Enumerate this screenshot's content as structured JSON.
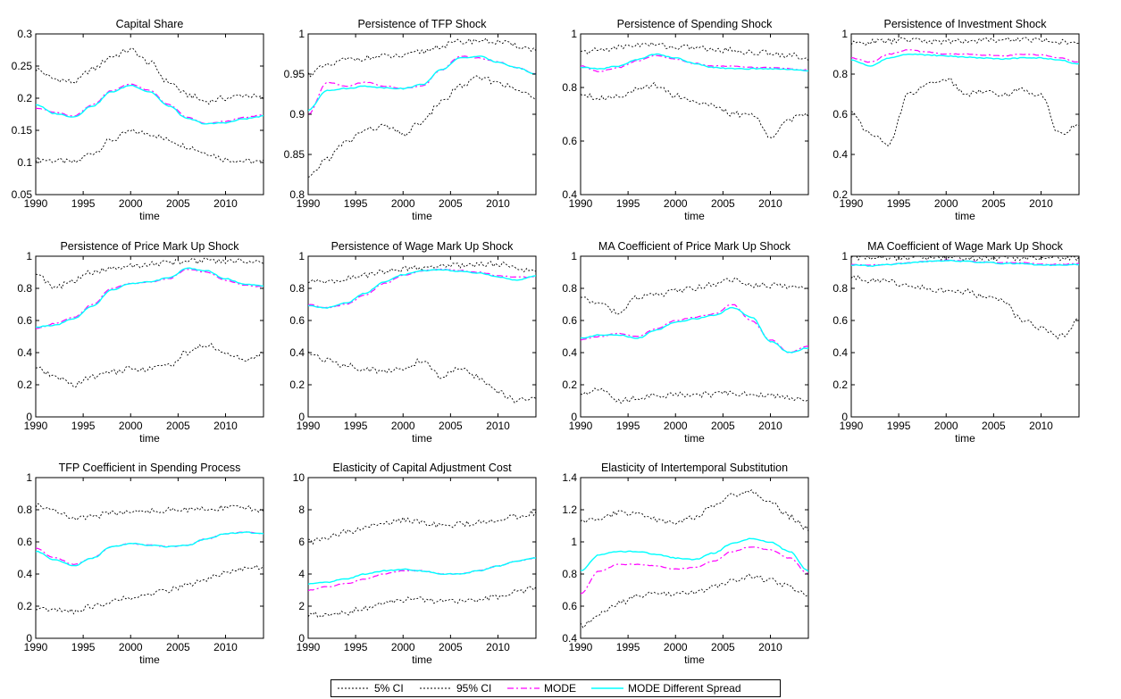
{
  "chart_data": {
    "type": "line",
    "layout": "3x4 grid of line charts",
    "x_range": [
      1990,
      2014
    ],
    "xticks": [
      1990,
      1995,
      2000,
      2005,
      2010
    ],
    "xlabel": "time",
    "legend": {
      "placement": "bottom-center",
      "entries": [
        {
          "name": "5% CI",
          "color": "#000000",
          "style": "dotted"
        },
        {
          "name": "95% CI",
          "color": "#000000",
          "style": "dotted"
        },
        {
          "name": "MODE",
          "color": "#ff00ff",
          "style": "dash-dot"
        },
        {
          "name": "MODE Different Spread",
          "color": "#00ffff",
          "style": "solid"
        }
      ]
    },
    "x_knots": [
      1990,
      1992,
      1994,
      1996,
      1998,
      2000,
      2002,
      2004,
      2006,
      2008,
      2010,
      2012,
      2014
    ],
    "panels": [
      {
        "title": "Capital Share",
        "ylim": [
          0.05,
          0.3
        ],
        "yticks": [
          0.05,
          0.1,
          0.15,
          0.2,
          0.25,
          0.3
        ],
        "ytick_labels": [
          "0.05",
          "0.1",
          "0.15",
          "0.2",
          "0.25",
          "0.3"
        ],
        "series": {
          "ci5": [
            0.105,
            0.103,
            0.1,
            0.115,
            0.135,
            0.148,
            0.145,
            0.135,
            0.125,
            0.115,
            0.105,
            0.102,
            0.1
          ],
          "ci95": [
            0.245,
            0.23,
            0.225,
            0.245,
            0.265,
            0.275,
            0.255,
            0.225,
            0.205,
            0.195,
            0.2,
            0.205,
            0.2
          ],
          "mode": [
            0.185,
            0.178,
            0.172,
            0.19,
            0.212,
            0.222,
            0.212,
            0.19,
            0.17,
            0.16,
            0.164,
            0.17,
            0.174
          ],
          "spread": [
            0.19,
            0.176,
            0.171,
            0.188,
            0.21,
            0.22,
            0.21,
            0.188,
            0.168,
            0.16,
            0.162,
            0.168,
            0.172
          ]
        }
      },
      {
        "title": "Persistence of TFP Shock",
        "ylim": [
          0.8,
          1
        ],
        "yticks": [
          0.8,
          0.85,
          0.9,
          0.95,
          1
        ],
        "ytick_labels": [
          "0.8",
          "0.85",
          "0.9",
          "0.95",
          "1"
        ],
        "series": {
          "ci5": [
            0.82,
            0.845,
            0.865,
            0.88,
            0.885,
            0.875,
            0.89,
            0.915,
            0.935,
            0.945,
            0.94,
            0.93,
            0.92
          ],
          "ci95": [
            0.95,
            0.96,
            0.968,
            0.97,
            0.972,
            0.972,
            0.978,
            0.985,
            0.99,
            0.992,
            0.99,
            0.985,
            0.98
          ],
          "mode": [
            0.9,
            0.94,
            0.935,
            0.94,
            0.935,
            0.932,
            0.935,
            0.955,
            0.972,
            0.97,
            0.965,
            0.958,
            0.95
          ],
          "spread": [
            0.905,
            0.93,
            0.932,
            0.935,
            0.933,
            0.932,
            0.937,
            0.955,
            0.97,
            0.972,
            0.965,
            0.958,
            0.95
          ]
        }
      },
      {
        "title": "Persistence of Spending Shock",
        "ylim": [
          0.4,
          1
        ],
        "yticks": [
          0.4,
          0.6,
          0.8,
          1
        ],
        "ytick_labels": [
          "0.4",
          "0.6",
          "0.8",
          "1"
        ],
        "series": {
          "ci5": [
            0.78,
            0.76,
            0.77,
            0.79,
            0.81,
            0.77,
            0.75,
            0.73,
            0.7,
            0.7,
            0.62,
            0.68,
            0.7
          ],
          "ci95": [
            0.93,
            0.94,
            0.95,
            0.96,
            0.96,
            0.95,
            0.95,
            0.94,
            0.94,
            0.93,
            0.93,
            0.92,
            0.91
          ],
          "mode": [
            0.88,
            0.86,
            0.875,
            0.9,
            0.92,
            0.905,
            0.89,
            0.88,
            0.88,
            0.875,
            0.875,
            0.87,
            0.865
          ],
          "spread": [
            0.875,
            0.87,
            0.88,
            0.905,
            0.925,
            0.91,
            0.89,
            0.875,
            0.87,
            0.87,
            0.87,
            0.868,
            0.862
          ]
        }
      },
      {
        "title": "Persistence of Investment Shock",
        "ylim": [
          0.2,
          1
        ],
        "yticks": [
          0.2,
          0.4,
          0.6,
          0.8,
          1
        ],
        "ytick_labels": [
          "0.2",
          "0.4",
          "0.6",
          "0.8",
          "1"
        ],
        "series": {
          "ci5": [
            0.62,
            0.5,
            0.45,
            0.7,
            0.75,
            0.78,
            0.7,
            0.72,
            0.7,
            0.72,
            0.7,
            0.5,
            0.55
          ],
          "ci95": [
            0.95,
            0.96,
            0.965,
            0.97,
            0.965,
            0.96,
            0.965,
            0.97,
            0.97,
            0.975,
            0.97,
            0.96,
            0.96
          ],
          "mode": [
            0.88,
            0.86,
            0.9,
            0.92,
            0.91,
            0.9,
            0.9,
            0.895,
            0.89,
            0.9,
            0.895,
            0.88,
            0.86
          ],
          "spread": [
            0.87,
            0.84,
            0.88,
            0.9,
            0.895,
            0.89,
            0.885,
            0.88,
            0.875,
            0.88,
            0.88,
            0.87,
            0.85
          ]
        }
      },
      {
        "title": "Persistence of Price Mark Up Shock",
        "ylim": [
          0,
          1
        ],
        "yticks": [
          0,
          0.2,
          0.4,
          0.6,
          0.8,
          1
        ],
        "ytick_labels": [
          "0",
          "0.2",
          "0.4",
          "0.6",
          "0.8",
          "1"
        ],
        "series": {
          "ci5": [
            0.3,
            0.25,
            0.2,
            0.25,
            0.28,
            0.3,
            0.3,
            0.32,
            0.4,
            0.45,
            0.4,
            0.35,
            0.4
          ],
          "ci95": [
            0.9,
            0.8,
            0.85,
            0.9,
            0.92,
            0.94,
            0.95,
            0.96,
            0.97,
            0.97,
            0.97,
            0.97,
            0.97
          ],
          "mode": [
            0.55,
            0.58,
            0.62,
            0.7,
            0.8,
            0.83,
            0.84,
            0.86,
            0.92,
            0.9,
            0.85,
            0.82,
            0.81
          ],
          "spread": [
            0.56,
            0.57,
            0.61,
            0.69,
            0.79,
            0.83,
            0.84,
            0.865,
            0.925,
            0.91,
            0.86,
            0.825,
            0.815
          ]
        }
      },
      {
        "title": "Persistence of Wage Mark Up Shock",
        "ylim": [
          0,
          1
        ],
        "yticks": [
          0,
          0.2,
          0.4,
          0.6,
          0.8,
          1
        ],
        "ytick_labels": [
          "0",
          "0.2",
          "0.4",
          "0.6",
          "0.8",
          "1"
        ],
        "series": {
          "ci5": [
            0.4,
            0.35,
            0.32,
            0.3,
            0.28,
            0.3,
            0.35,
            0.25,
            0.3,
            0.25,
            0.15,
            0.1,
            0.12
          ],
          "ci95": [
            0.84,
            0.84,
            0.86,
            0.88,
            0.9,
            0.92,
            0.93,
            0.94,
            0.94,
            0.95,
            0.95,
            0.93,
            0.9
          ],
          "mode": [
            0.7,
            0.68,
            0.7,
            0.76,
            0.83,
            0.88,
            0.91,
            0.92,
            0.91,
            0.9,
            0.88,
            0.87,
            0.87
          ],
          "spread": [
            0.69,
            0.68,
            0.71,
            0.77,
            0.84,
            0.885,
            0.91,
            0.915,
            0.905,
            0.895,
            0.87,
            0.85,
            0.88
          ]
        }
      },
      {
        "title": "MA Coefficient of Price Mark Up Shock",
        "ylim": [
          0,
          1
        ],
        "yticks": [
          0,
          0.2,
          0.4,
          0.6,
          0.8,
          1
        ],
        "ytick_labels": [
          "0",
          "0.2",
          "0.4",
          "0.6",
          "0.8",
          "1"
        ],
        "series": {
          "ci5": [
            0.15,
            0.18,
            0.1,
            0.12,
            0.13,
            0.14,
            0.14,
            0.14,
            0.15,
            0.14,
            0.13,
            0.12,
            0.11
          ],
          "ci95": [
            0.75,
            0.7,
            0.65,
            0.74,
            0.76,
            0.78,
            0.8,
            0.83,
            0.85,
            0.82,
            0.82,
            0.81,
            0.8
          ],
          "mode": [
            0.48,
            0.5,
            0.52,
            0.5,
            0.55,
            0.6,
            0.62,
            0.64,
            0.7,
            0.6,
            0.48,
            0.4,
            0.44
          ],
          "spread": [
            0.49,
            0.51,
            0.51,
            0.49,
            0.54,
            0.59,
            0.61,
            0.63,
            0.68,
            0.62,
            0.47,
            0.4,
            0.43
          ]
        }
      },
      {
        "title": "MA Coefficient of Wage Mark Up Shock",
        "ylim": [
          0,
          1
        ],
        "yticks": [
          0,
          0.2,
          0.4,
          0.6,
          0.8,
          1
        ],
        "ytick_labels": [
          "0",
          "0.2",
          "0.4",
          "0.6",
          "0.8",
          "1"
        ],
        "series": {
          "ci5": [
            0.87,
            0.85,
            0.84,
            0.82,
            0.8,
            0.78,
            0.78,
            0.75,
            0.72,
            0.6,
            0.55,
            0.5,
            0.6
          ],
          "ci95": [
            0.99,
            0.99,
            0.99,
            0.99,
            0.99,
            0.99,
            0.99,
            0.99,
            0.99,
            0.99,
            0.99,
            0.985,
            0.985
          ],
          "mode": [
            0.95,
            0.945,
            0.95,
            0.96,
            0.97,
            0.975,
            0.97,
            0.965,
            0.96,
            0.96,
            0.95,
            0.95,
            0.955
          ],
          "spread": [
            0.945,
            0.94,
            0.948,
            0.958,
            0.968,
            0.972,
            0.968,
            0.962,
            0.955,
            0.955,
            0.945,
            0.945,
            0.95
          ]
        }
      },
      {
        "title": "TFP Coefficient in Spending Process",
        "ylim": [
          0,
          1
        ],
        "yticks": [
          0,
          0.2,
          0.4,
          0.6,
          0.8,
          1
        ],
        "ytick_labels": [
          "0",
          "0.2",
          "0.4",
          "0.6",
          "0.8",
          "1"
        ],
        "series": {
          "ci5": [
            0.19,
            0.18,
            0.17,
            0.2,
            0.23,
            0.25,
            0.27,
            0.3,
            0.33,
            0.37,
            0.4,
            0.43,
            0.44
          ],
          "ci95": [
            0.83,
            0.8,
            0.74,
            0.76,
            0.78,
            0.79,
            0.79,
            0.8,
            0.8,
            0.81,
            0.81,
            0.81,
            0.8
          ],
          "mode": [
            0.56,
            0.5,
            0.46,
            0.5,
            0.57,
            0.59,
            0.58,
            0.57,
            0.58,
            0.62,
            0.65,
            0.66,
            0.65
          ],
          "spread": [
            0.54,
            0.49,
            0.45,
            0.5,
            0.57,
            0.59,
            0.58,
            0.57,
            0.58,
            0.62,
            0.65,
            0.66,
            0.65
          ]
        }
      },
      {
        "title": "Elasticity of Capital Adjustment Cost",
        "ylim": [
          0,
          10
        ],
        "yticks": [
          0,
          2,
          4,
          6,
          8,
          10
        ],
        "ytick_labels": [
          "0",
          "2",
          "4",
          "6",
          "8",
          "10"
        ],
        "series": {
          "ci5": [
            1.5,
            1.4,
            1.6,
            1.9,
            2.2,
            2.4,
            2.4,
            2.3,
            2.3,
            2.4,
            2.6,
            2.9,
            3.2
          ],
          "ci95": [
            6.0,
            6.3,
            6.6,
            6.9,
            7.2,
            7.4,
            7.2,
            7.0,
            7.1,
            7.2,
            7.4,
            7.6,
            7.8
          ],
          "mode": [
            3.0,
            3.2,
            3.4,
            3.7,
            4.0,
            4.2,
            4.2,
            4.0,
            4.0,
            4.2,
            4.5,
            4.8,
            5.0
          ],
          "spread": [
            3.4,
            3.5,
            3.7,
            4.0,
            4.2,
            4.3,
            4.2,
            4.0,
            4.0,
            4.2,
            4.5,
            4.8,
            5.0
          ]
        }
      },
      {
        "title": "Elasticity of Intertemporal Substitution",
        "ylim": [
          0.4,
          1.4
        ],
        "yticks": [
          0.4,
          0.6,
          0.8,
          1,
          1.2,
          1.4
        ],
        "ytick_labels": [
          "0.4",
          "0.6",
          "0.8",
          "1",
          "1.2",
          "1.4"
        ],
        "series": {
          "ci5": [
            0.48,
            0.55,
            0.62,
            0.66,
            0.68,
            0.68,
            0.68,
            0.72,
            0.76,
            0.79,
            0.76,
            0.72,
            0.66
          ],
          "ci95": [
            1.12,
            1.15,
            1.18,
            1.17,
            1.14,
            1.12,
            1.15,
            1.22,
            1.3,
            1.31,
            1.24,
            1.16,
            1.08
          ],
          "mode": [
            0.68,
            0.82,
            0.86,
            0.86,
            0.85,
            0.83,
            0.84,
            0.88,
            0.94,
            0.97,
            0.95,
            0.9,
            0.8
          ],
          "spread": [
            0.82,
            0.92,
            0.94,
            0.94,
            0.92,
            0.9,
            0.89,
            0.93,
            0.99,
            1.02,
            1.0,
            0.94,
            0.82
          ]
        }
      }
    ]
  }
}
